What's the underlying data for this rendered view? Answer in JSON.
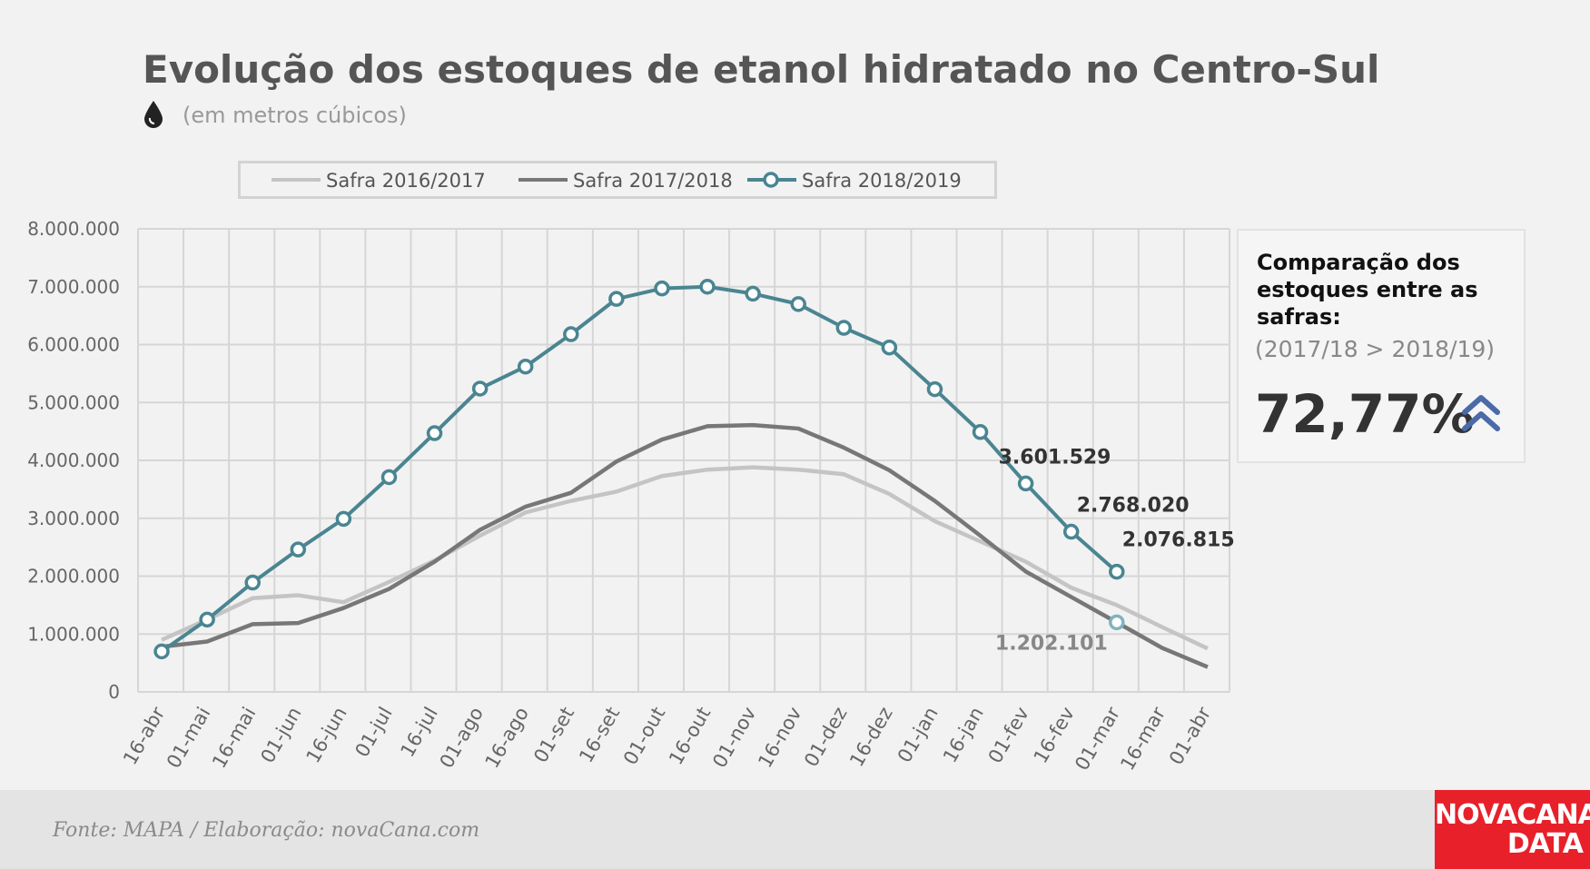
{
  "header": {
    "title": "Evolução dos estoques de etanol hidratado no Centro-Sul",
    "subtitle": "(em metros cúbicos)",
    "subtitle_icon": "drop-icon"
  },
  "legend": {
    "items": [
      {
        "label": "Safra 2016/2017",
        "color": "#c4c4c4",
        "marker": "none"
      },
      {
        "label": "Safra 2017/2018",
        "color": "#777777",
        "marker": "none"
      },
      {
        "label": "Safra 2018/2019",
        "color": "#4a8591",
        "marker": "circle"
      }
    ]
  },
  "chart_data": {
    "type": "line",
    "title": "Evolução dos estoques de etanol hidratado no Centro-Sul",
    "subtitle": "(em metros cúbicos)",
    "xlabel": "",
    "ylabel": "",
    "ylim": [
      0,
      8000000
    ],
    "yticks": [
      0,
      1000000,
      2000000,
      3000000,
      4000000,
      5000000,
      6000000,
      7000000,
      8000000
    ],
    "ytick_labels": [
      "0",
      "1.000.000",
      "2.000.000",
      "3.000.000",
      "4.000.000",
      "5.000.000",
      "6.000.000",
      "7.000.000",
      "8.000.000"
    ],
    "categories": [
      "16-abr",
      "01-mai",
      "16-mai",
      "01-jun",
      "16-jun",
      "01-jul",
      "16-jul",
      "01-ago",
      "16-ago",
      "01-set",
      "16-set",
      "01-out",
      "16-out",
      "01-nov",
      "16-nov",
      "01-dez",
      "16-dez",
      "01-jan",
      "16-jan",
      "01-fev",
      "16-fev",
      "01-mar",
      "16-mar",
      "01-abr"
    ],
    "grid": true,
    "legend_position": "top",
    "series": [
      {
        "name": "Safra 2016/2017",
        "color": "#c4c4c4",
        "values": [
          900000,
          1250000,
          1620000,
          1670000,
          1550000,
          1900000,
          2270000,
          2700000,
          3100000,
          3300000,
          3460000,
          3730000,
          3840000,
          3880000,
          3840000,
          3760000,
          3420000,
          2950000,
          2600000,
          2250000,
          1800000,
          1500000,
          1120000,
          750000
        ]
      },
      {
        "name": "Safra 2017/2018",
        "color": "#777777",
        "values": [
          780000,
          870000,
          1170000,
          1190000,
          1450000,
          1780000,
          2250000,
          2800000,
          3200000,
          3440000,
          3980000,
          4360000,
          4590000,
          4610000,
          4550000,
          4220000,
          3830000,
          3300000,
          2700000,
          2080000,
          1640000,
          1202101,
          760000,
          430000
        ]
      },
      {
        "name": "Safra 2018/2019",
        "color": "#4a8591",
        "marker": "circle",
        "values": [
          700000,
          1250000,
          1890000,
          2460000,
          2990000,
          3710000,
          4470000,
          5240000,
          5620000,
          6180000,
          6790000,
          6970000,
          7000000,
          6880000,
          6700000,
          6290000,
          5950000,
          5230000,
          4490000,
          3601529,
          2768020,
          2076815,
          null,
          null
        ]
      }
    ],
    "annotations": [
      {
        "text": "3.601.529",
        "category": "01-fev",
        "value": 3601529,
        "color": "#333333"
      },
      {
        "text": "2.768.020",
        "category": "16-fev",
        "value": 2768020,
        "color": "#333333"
      },
      {
        "text": "2.076.815",
        "category": "01-mar",
        "value": 2076815,
        "color": "#333333"
      },
      {
        "text": "1.202.101",
        "category": "01-mar",
        "value": 1202101,
        "color": "#888888"
      }
    ]
  },
  "panel": {
    "title": "Comparação dos estoques entre as safras:",
    "subtitle": "(2017/18 > 2018/19)",
    "value": "72,77%",
    "icon": "double-chevron-up-icon",
    "icon_color": "#4a6aa8"
  },
  "footer": {
    "source": "Fonte: MAPA  / Elaboração: novaCana.com"
  },
  "brand": {
    "line1": "NOVACANA",
    "line2": "DATA",
    "color": "#e8202a"
  }
}
